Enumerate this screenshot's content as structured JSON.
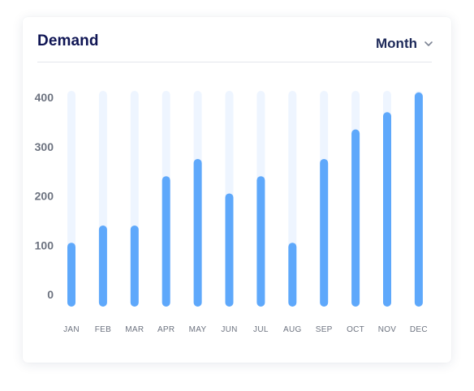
{
  "card": {
    "title": "Demand",
    "period_selector": {
      "label": "Month",
      "icon": "chevron-down-icon"
    }
  },
  "colors": {
    "bar": "#5ea8fb",
    "track": "#eef5ff",
    "title": "#0f1554"
  },
  "chart_data": {
    "type": "bar",
    "title": "Demand",
    "xlabel": "",
    "ylabel": "",
    "categories": [
      "JAN",
      "FEB",
      "MAR",
      "APR",
      "MAY",
      "JUN",
      "JUL",
      "AUG",
      "SEP",
      "OCT",
      "NOV",
      "DEC"
    ],
    "values": [
      105,
      140,
      140,
      240,
      275,
      205,
      240,
      105,
      275,
      335,
      370,
      410
    ],
    "yticks": [
      0,
      100,
      200,
      300,
      400
    ],
    "ylim": [
      0,
      410
    ],
    "grid": false,
    "legend": "none"
  }
}
